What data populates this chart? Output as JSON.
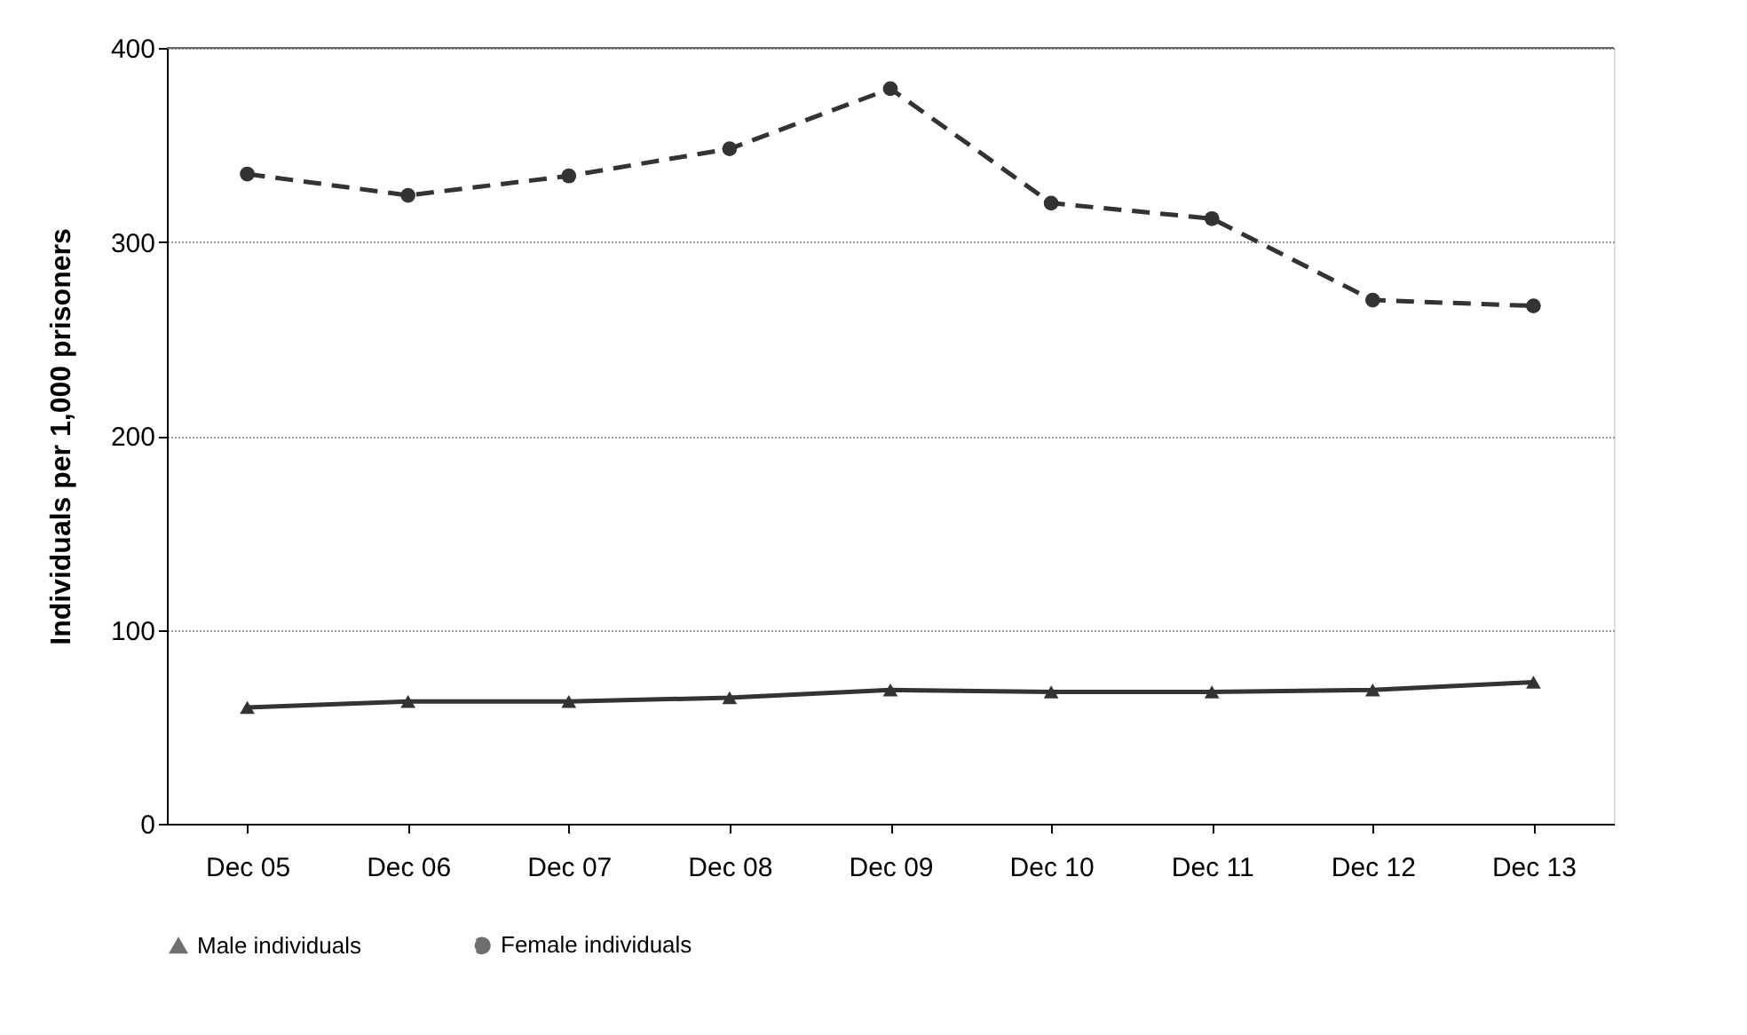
{
  "chart_data": {
    "type": "line",
    "ylabel": "Individuals per 1,000 prisoners",
    "categories": [
      "Dec 05",
      "Dec 06",
      "Dec 07",
      "Dec 08",
      "Dec 09",
      "Dec 10",
      "Dec 11",
      "Dec 12",
      "Dec 13"
    ],
    "ylim": [
      0,
      400
    ],
    "yticks": [
      0,
      100,
      200,
      300,
      400
    ],
    "grid": "y",
    "legend": "bottom",
    "series": [
      {
        "name": "Male individuals",
        "color": "#333333",
        "marker": "triangle",
        "line_style": "solid",
        "values": [
          60,
          63,
          63,
          65,
          69,
          68,
          68,
          69,
          73
        ]
      },
      {
        "name": "Female individuals",
        "color": "#333333",
        "marker": "circle",
        "line_style": "dashed",
        "values": [
          335,
          324,
          334,
          348,
          379,
          320,
          312,
          270,
          267
        ]
      }
    ]
  }
}
